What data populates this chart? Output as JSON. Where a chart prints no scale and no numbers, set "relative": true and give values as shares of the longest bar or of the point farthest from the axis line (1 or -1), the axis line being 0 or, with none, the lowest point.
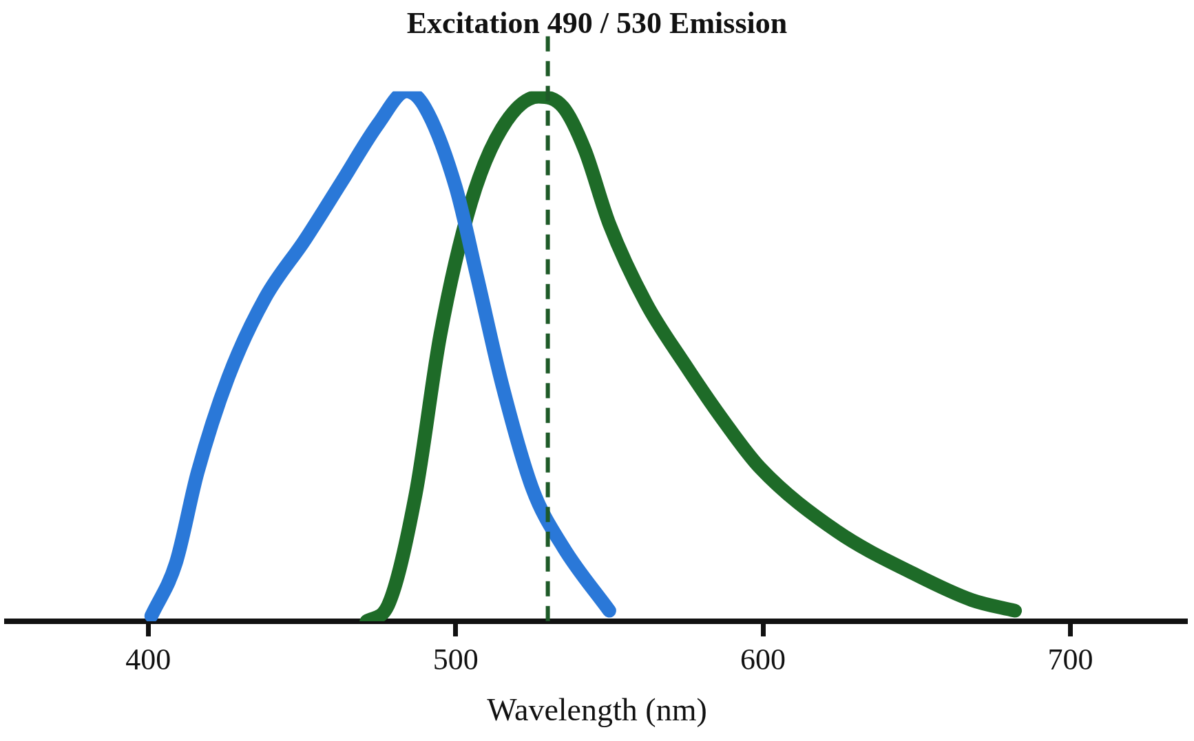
{
  "chart_data": {
    "type": "line",
    "title": "Excitation 490 / 530 Emission",
    "xlabel": "Wavelength (nm)",
    "relative": true,
    "xlim": [
      354,
      738
    ],
    "xticks": [
      400,
      500,
      600,
      700
    ],
    "grid": false,
    "legend": false,
    "marker": "none",
    "line_style": "solid",
    "series": [
      {
        "color": "#2a78d8",
        "x": [
          401,
          409,
          416,
          426,
          438,
          451,
          463,
          475,
          484,
          490,
          500,
          507,
          515,
          525,
          535,
          550
        ],
        "values": [
          0.01,
          0.11,
          0.28,
          0.46,
          0.61,
          0.72,
          0.83,
          0.94,
          1.0,
          0.97,
          0.82,
          0.65,
          0.45,
          0.25,
          0.14,
          0.02
        ]
      },
      {
        "color": "#1e6b28",
        "x": [
          471,
          478,
          487,
          495,
          505,
          515,
          527,
          535,
          542,
          550,
          562,
          574,
          587,
          599,
          624,
          649,
          668,
          682
        ],
        "values": [
          0,
          0.03,
          0.24,
          0.54,
          0.79,
          0.93,
          0.99,
          0.97,
          0.89,
          0.75,
          0.6,
          0.49,
          0.38,
          0.29,
          0.17,
          0.09,
          0.04,
          0.02
        ]
      }
    ],
    "ref_lines": [
      {
        "axis": "x",
        "value": 530,
        "color": "#1e5a28",
        "line_style": "dashed"
      }
    ]
  }
}
